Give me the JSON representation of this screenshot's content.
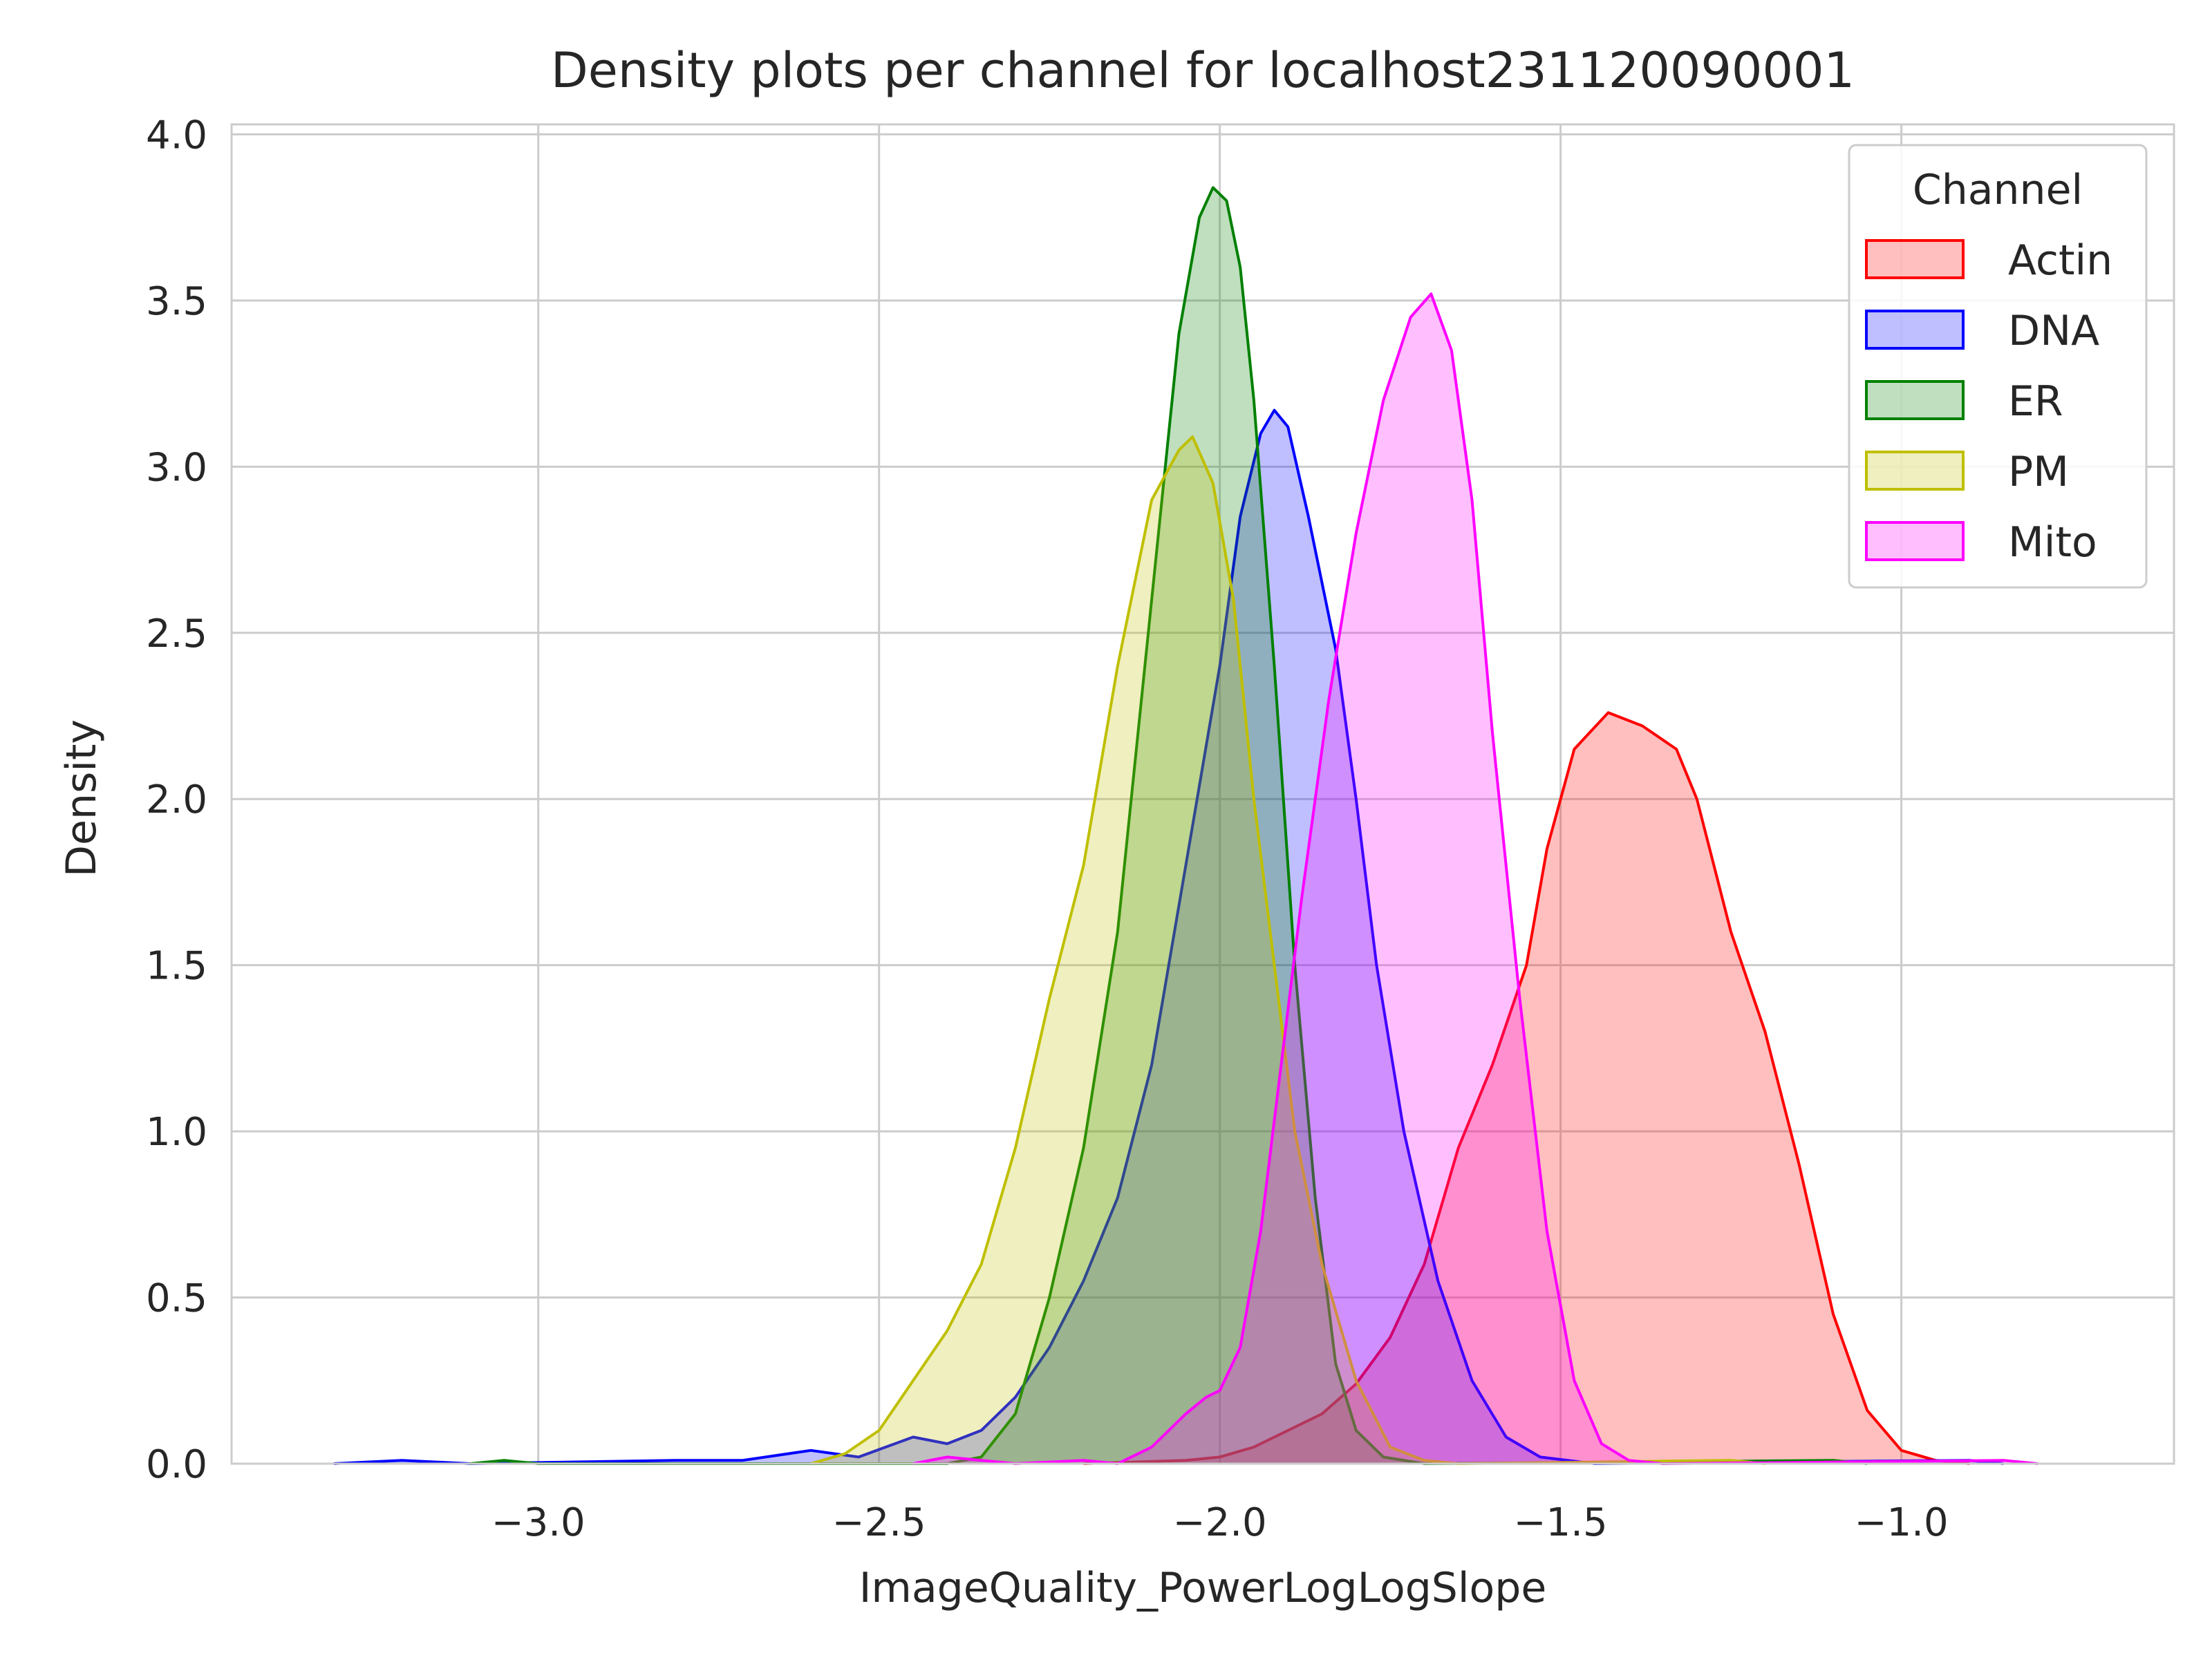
{
  "chart_data": {
    "type": "area",
    "title": "Density plots per channel for localhost231120090001",
    "xlabel": "ImageQuality_PowerLogLogSlope",
    "ylabel": "Density",
    "xlim": [
      -3.45,
      -0.6
    ],
    "ylim": [
      0,
      4.03
    ],
    "xticks": [
      -3.0,
      -2.5,
      -2.0,
      -1.5,
      -1.0
    ],
    "xtick_labels": [
      "−3.0",
      "−2.5",
      "−2.0",
      "−1.5",
      "−1.0"
    ],
    "yticks": [
      0.0,
      0.5,
      1.0,
      1.5,
      2.0,
      2.5,
      3.0,
      3.5,
      4.0
    ],
    "ytick_labels": [
      "0.0",
      "0.5",
      "1.0",
      "1.5",
      "2.0",
      "2.5",
      "3.0",
      "3.5",
      "4.0"
    ],
    "grid": true,
    "legend": {
      "title": "Channel",
      "position": "upper right"
    },
    "series": [
      {
        "name": "Actin",
        "color": "#ff0000",
        "points": [
          [
            -2.2,
            0
          ],
          [
            -2.05,
            0.01
          ],
          [
            -2.0,
            0.02
          ],
          [
            -1.95,
            0.05
          ],
          [
            -1.9,
            0.1
          ],
          [
            -1.85,
            0.15
          ],
          [
            -1.8,
            0.24
          ],
          [
            -1.75,
            0.38
          ],
          [
            -1.7,
            0.6
          ],
          [
            -1.65,
            0.95
          ],
          [
            -1.6,
            1.2
          ],
          [
            -1.55,
            1.5
          ],
          [
            -1.52,
            1.85
          ],
          [
            -1.48,
            2.15
          ],
          [
            -1.43,
            2.26
          ],
          [
            -1.38,
            2.22
          ],
          [
            -1.33,
            2.15
          ],
          [
            -1.3,
            2.0
          ],
          [
            -1.25,
            1.6
          ],
          [
            -1.2,
            1.3
          ],
          [
            -1.15,
            0.9
          ],
          [
            -1.1,
            0.45
          ],
          [
            -1.05,
            0.16
          ],
          [
            -1.0,
            0.04
          ],
          [
            -0.95,
            0.01
          ],
          [
            -0.9,
            0
          ]
        ]
      },
      {
        "name": "DNA",
        "color": "#0000ff",
        "points": [
          [
            -3.3,
            0
          ],
          [
            -3.2,
            0.01
          ],
          [
            -3.1,
            0
          ],
          [
            -2.8,
            0.01
          ],
          [
            -2.7,
            0.01
          ],
          [
            -2.6,
            0.04
          ],
          [
            -2.53,
            0.02
          ],
          [
            -2.45,
            0.08
          ],
          [
            -2.4,
            0.06
          ],
          [
            -2.35,
            0.1
          ],
          [
            -2.3,
            0.2
          ],
          [
            -2.25,
            0.35
          ],
          [
            -2.2,
            0.55
          ],
          [
            -2.15,
            0.8
          ],
          [
            -2.1,
            1.2
          ],
          [
            -2.05,
            1.8
          ],
          [
            -2.0,
            2.4
          ],
          [
            -1.97,
            2.85
          ],
          [
            -1.94,
            3.1
          ],
          [
            -1.92,
            3.17
          ],
          [
            -1.9,
            3.12
          ],
          [
            -1.87,
            2.85
          ],
          [
            -1.83,
            2.45
          ],
          [
            -1.8,
            2.0
          ],
          [
            -1.77,
            1.5
          ],
          [
            -1.73,
            1.0
          ],
          [
            -1.68,
            0.55
          ],
          [
            -1.63,
            0.25
          ],
          [
            -1.58,
            0.08
          ],
          [
            -1.53,
            0.02
          ],
          [
            -1.45,
            0
          ],
          [
            -0.9,
            0.01
          ],
          [
            -0.85,
            0
          ]
        ]
      },
      {
        "name": "ER",
        "color": "#008000",
        "points": [
          [
            -3.1,
            0
          ],
          [
            -3.05,
            0.01
          ],
          [
            -3.0,
            0
          ],
          [
            -2.4,
            0
          ],
          [
            -2.35,
            0.02
          ],
          [
            -2.3,
            0.15
          ],
          [
            -2.25,
            0.5
          ],
          [
            -2.2,
            0.95
          ],
          [
            -2.15,
            1.6
          ],
          [
            -2.1,
            2.6
          ],
          [
            -2.06,
            3.4
          ],
          [
            -2.03,
            3.75
          ],
          [
            -2.01,
            3.84
          ],
          [
            -1.99,
            3.8
          ],
          [
            -1.97,
            3.6
          ],
          [
            -1.95,
            3.2
          ],
          [
            -1.92,
            2.4
          ],
          [
            -1.89,
            1.5
          ],
          [
            -1.86,
            0.8
          ],
          [
            -1.83,
            0.3
          ],
          [
            -1.8,
            0.1
          ],
          [
            -1.76,
            0.02
          ],
          [
            -1.7,
            0
          ],
          [
            -1.1,
            0.01
          ],
          [
            -1.05,
            0
          ]
        ]
      },
      {
        "name": "PM",
        "color": "#bfbf00",
        "points": [
          [
            -2.6,
            0
          ],
          [
            -2.55,
            0.03
          ],
          [
            -2.5,
            0.1
          ],
          [
            -2.45,
            0.25
          ],
          [
            -2.4,
            0.4
          ],
          [
            -2.35,
            0.6
          ],
          [
            -2.3,
            0.95
          ],
          [
            -2.25,
            1.4
          ],
          [
            -2.2,
            1.8
          ],
          [
            -2.15,
            2.4
          ],
          [
            -2.1,
            2.9
          ],
          [
            -2.06,
            3.05
          ],
          [
            -2.04,
            3.09
          ],
          [
            -2.01,
            2.95
          ],
          [
            -1.98,
            2.6
          ],
          [
            -1.95,
            2.0
          ],
          [
            -1.92,
            1.5
          ],
          [
            -1.89,
            1.0
          ],
          [
            -1.85,
            0.6
          ],
          [
            -1.8,
            0.25
          ],
          [
            -1.75,
            0.05
          ],
          [
            -1.7,
            0.01
          ],
          [
            -1.65,
            0
          ],
          [
            -1.25,
            0.01
          ],
          [
            -1.2,
            0
          ]
        ]
      },
      {
        "name": "Mito",
        "color": "#ff00ff",
        "points": [
          [
            -2.45,
            0
          ],
          [
            -2.4,
            0.02
          ],
          [
            -2.3,
            0
          ],
          [
            -2.2,
            0.01
          ],
          [
            -2.15,
            0
          ],
          [
            -2.1,
            0.05
          ],
          [
            -2.05,
            0.15
          ],
          [
            -2.02,
            0.2
          ],
          [
            -2.0,
            0.22
          ],
          [
            -1.97,
            0.35
          ],
          [
            -1.94,
            0.7
          ],
          [
            -1.91,
            1.2
          ],
          [
            -1.88,
            1.7
          ],
          [
            -1.84,
            2.3
          ],
          [
            -1.8,
            2.8
          ],
          [
            -1.76,
            3.2
          ],
          [
            -1.72,
            3.45
          ],
          [
            -1.69,
            3.52
          ],
          [
            -1.66,
            3.35
          ],
          [
            -1.63,
            2.9
          ],
          [
            -1.6,
            2.2
          ],
          [
            -1.56,
            1.4
          ],
          [
            -1.52,
            0.7
          ],
          [
            -1.48,
            0.25
          ],
          [
            -1.44,
            0.06
          ],
          [
            -1.4,
            0.01
          ],
          [
            -1.35,
            0
          ],
          [
            -0.85,
            0.01
          ],
          [
            -0.8,
            0
          ]
        ]
      }
    ]
  }
}
